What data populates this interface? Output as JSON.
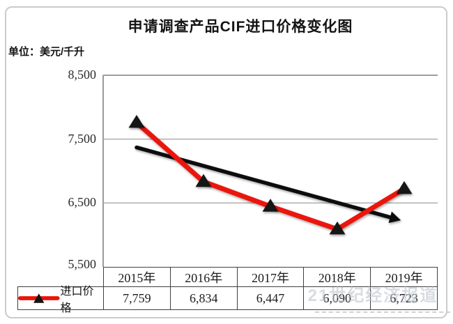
{
  "title": "申请调查产品CIF进口价格变化图",
  "unit_label": "单位：美元/千升",
  "watermark": "21世纪经济报道",
  "chart_data": {
    "type": "line",
    "title": "申请调查产品CIF进口价格变化图",
    "ylabel": "美元/千升",
    "categories": [
      "2015年",
      "2016年",
      "2017年",
      "2018年",
      "2019年"
    ],
    "series": [
      {
        "name": "进口价格",
        "values": [
          7759,
          6834,
          6447,
          6090,
          6723
        ]
      }
    ],
    "ylim": [
      5500,
      8500
    ],
    "ytick_values": [
      8500,
      7500,
      6500,
      5500
    ],
    "yticks": [
      "8,500",
      "7,500",
      "6,500",
      "5,500"
    ],
    "grid": true,
    "legend_position": "bottom-table",
    "marker": "black-triangle",
    "trend_arrow": {
      "description": "straight black arrow showing downward trend",
      "start_index": 0,
      "end_index": 3.95,
      "start_value": 7370,
      "end_value": 6230
    }
  },
  "table": {
    "legend_label": "进口价格",
    "years": [
      "2015年",
      "2016年",
      "2017年",
      "2018年",
      "2019年"
    ],
    "values": [
      "7,759",
      "6,834",
      "6,447",
      "6,090",
      "6,723"
    ]
  },
  "colors": {
    "series_red": "#ea1409",
    "marker_black": "#141414",
    "trend_black": "#0e0e0e",
    "grid_gray": "#a9a9a9",
    "axis_gray": "#8f8f8f",
    "table_border": "#3f3f3f",
    "watermark_gray": "#bfc6cc"
  }
}
